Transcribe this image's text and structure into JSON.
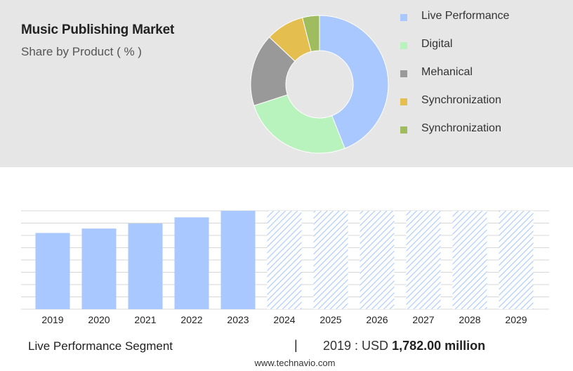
{
  "title": "Music Publishing Market",
  "subtitle": "Share by Product ( % )",
  "chart_data": [
    {
      "type": "pie",
      "donut": true,
      "title": "Music Publishing Market",
      "subtitle": "Share by Product ( % )",
      "slices": [
        {
          "label": "Live Performance",
          "value": 44,
          "color": "#a9c8ff"
        },
        {
          "label": "Digital",
          "value": 26,
          "color": "#b8f2bc"
        },
        {
          "label": "Mehanical",
          "value": 17,
          "color": "#999999"
        },
        {
          "label": "Synchronization",
          "value": 9,
          "color": "#e4bf4f"
        },
        {
          "label": "Synchronization",
          "value": 4,
          "color": "#9fbc5f"
        }
      ],
      "legend_position": "right"
    },
    {
      "type": "bar",
      "categories": [
        "2019",
        "2020",
        "2021",
        "2022",
        "2023",
        "2024",
        "2025",
        "2026",
        "2027",
        "2028",
        "2029"
      ],
      "values": [
        1782,
        1885,
        2003,
        2147,
        2300,
        null,
        null,
        null,
        null,
        null,
        null
      ],
      "forecast_from": "2024",
      "bar_color": "#a9c8ff",
      "forecast_pattern": "diagonal-hatch",
      "ylim": [
        0,
        2300
      ],
      "grid": true,
      "xlabel": "",
      "ylabel": ""
    }
  ],
  "footer": {
    "segment": "Live Performance Segment",
    "divider": "|",
    "year_prefix": "2019 : USD ",
    "value": "1,782.00 million"
  },
  "source": "www.technavio.com"
}
